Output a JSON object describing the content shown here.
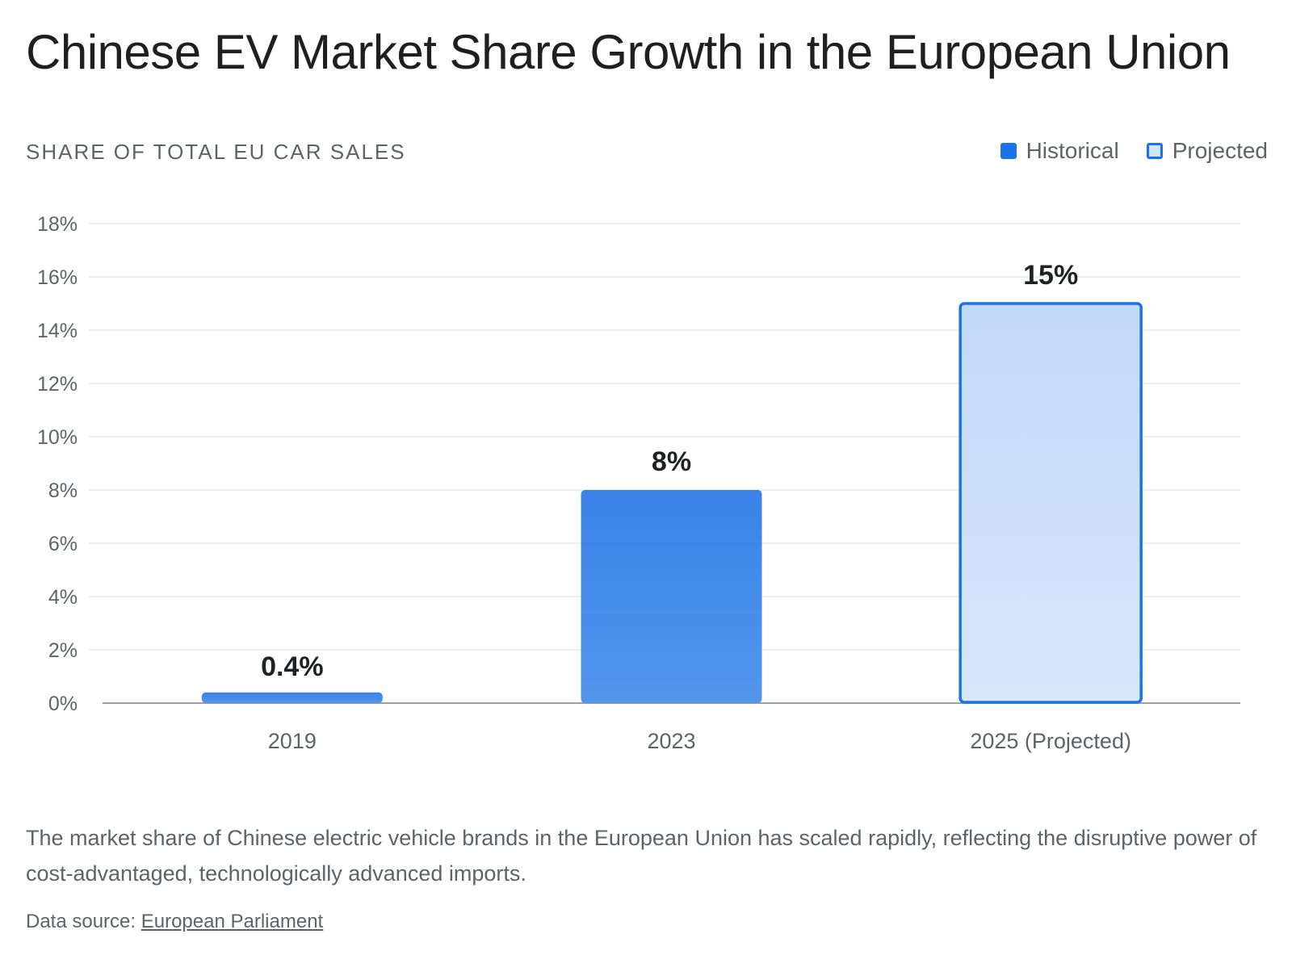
{
  "title": "Chinese EV Market Share Growth in the European Union",
  "subtitle": "SHARE OF TOTAL EU CAR SALES",
  "legend": {
    "historical": "Historical",
    "projected": "Projected"
  },
  "colors": {
    "historical": "#1a73e8",
    "historical_light": "#4e93ea",
    "projected_fill": "#c6dbf7",
    "projected_stroke": "#1a73e8",
    "grid": "#e8eaed",
    "axis": "#9aa0a6"
  },
  "chart_data": {
    "type": "bar",
    "categories": [
      "2019",
      "2023",
      "2025 (Projected)"
    ],
    "values": [
      0.4,
      8,
      15
    ],
    "value_labels": [
      "0.4%",
      "8%",
      "15%"
    ],
    "kinds": [
      "historical",
      "historical",
      "projected"
    ],
    "ylim": [
      0,
      18
    ],
    "yticks": [
      0,
      2,
      4,
      6,
      8,
      10,
      12,
      14,
      16,
      18
    ],
    "ytick_labels": [
      "0%",
      "2%",
      "4%",
      "6%",
      "8%",
      "10%",
      "12%",
      "14%",
      "16%",
      "18%"
    ],
    "grid": true,
    "legend_position": "top-right"
  },
  "description": "The market share of Chinese electric vehicle brands in the European Union has scaled rapidly, reflecting the disruptive power of cost-advantaged, technologically advanced imports.",
  "source": {
    "prefix": "Data source: ",
    "link_text": "European Parliament"
  }
}
